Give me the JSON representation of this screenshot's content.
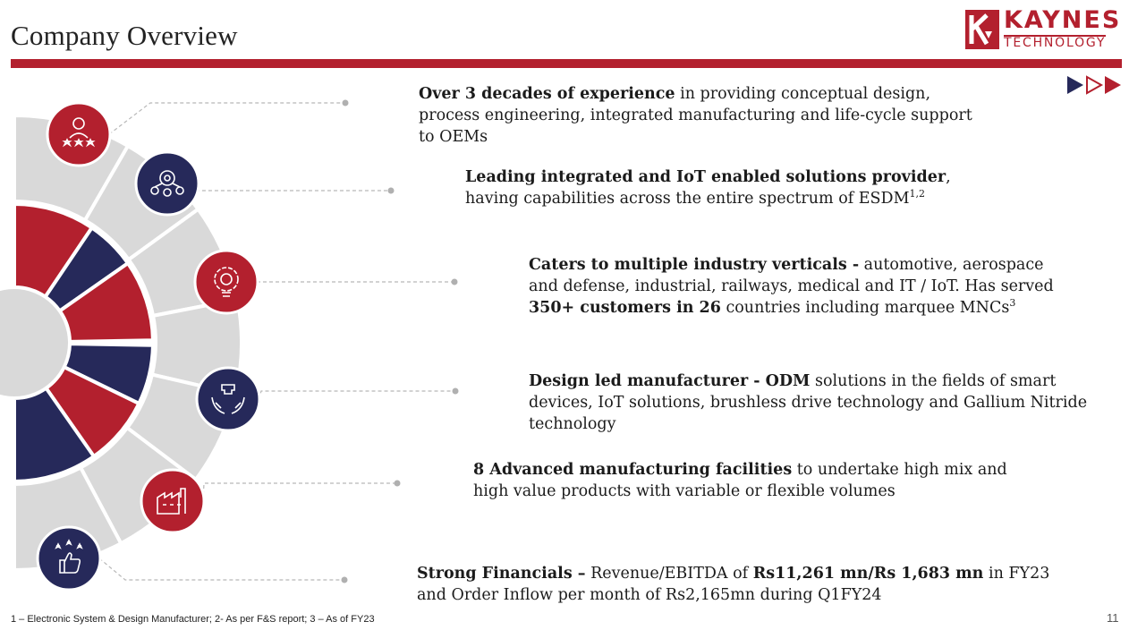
{
  "header": {
    "title": "Company Overview",
    "logo_name": "KAYNES",
    "logo_sub": "TECHNOLOGY"
  },
  "colors": {
    "accent_red": "#b3202e",
    "navy": "#26295a",
    "segment_gray": "#d9d9d9"
  },
  "icons": [
    "person-stars-icon",
    "people-network-icon",
    "lightbulb-gear-icon",
    "hands-puzzle-icon",
    "factory-icon",
    "thumbs-up-stars-icon"
  ],
  "items": [
    {
      "parts": [
        {
          "t": "Over 3 decades of experience",
          "b": true
        },
        {
          "t": " in providing conceptual design, process engineering, integrated manufacturing and life-cycle support to OEMs",
          "b": false
        }
      ]
    },
    {
      "parts": [
        {
          "t": "Leading integrated and IoT enabled solutions provider",
          "b": true
        },
        {
          "t": ", having capabilities across the entire spectrum of ESDM",
          "b": false
        },
        {
          "t": "1,2",
          "sup": true
        }
      ]
    },
    {
      "parts": [
        {
          "t": "Caters to multiple industry verticals -",
          "b": true
        },
        {
          "t": " automotive, aerospace and defense, industrial, railways, medical and IT / IoT. Has served ",
          "b": false
        },
        {
          "t": "350+ customers in 26",
          "b": true
        },
        {
          "t": " countries including marquee MNCs",
          "b": false
        },
        {
          "t": "3",
          "sup": true
        }
      ]
    },
    {
      "parts": [
        {
          "t": "Design led manufacturer - ODM",
          "b": true
        },
        {
          "t": " solutions in the fields of smart devices, IoT solutions, brushless drive technology and Gallium Nitride technology",
          "b": false
        }
      ]
    },
    {
      "parts": [
        {
          "t": "8 Advanced manufacturing facilities",
          "b": true
        },
        {
          "t": " to undertake high mix and high value products with variable or flexible volumes",
          "b": false
        }
      ]
    },
    {
      "parts": [
        {
          "t": "Strong Financials –",
          "b": true
        },
        {
          "t": " Revenue/EBITDA of ",
          "b": false
        },
        {
          "t": "Rs11,261 mn/Rs 1,683 mn",
          "b": true
        },
        {
          "t": " in FY23 and Order Inflow per month of Rs2,165mn during Q1FY24",
          "b": false
        }
      ]
    }
  ],
  "footnote": "1 – Electronic System & Design Manufacturer; 2- As per F&S report; 3 – As of FY23",
  "page_number": "11"
}
